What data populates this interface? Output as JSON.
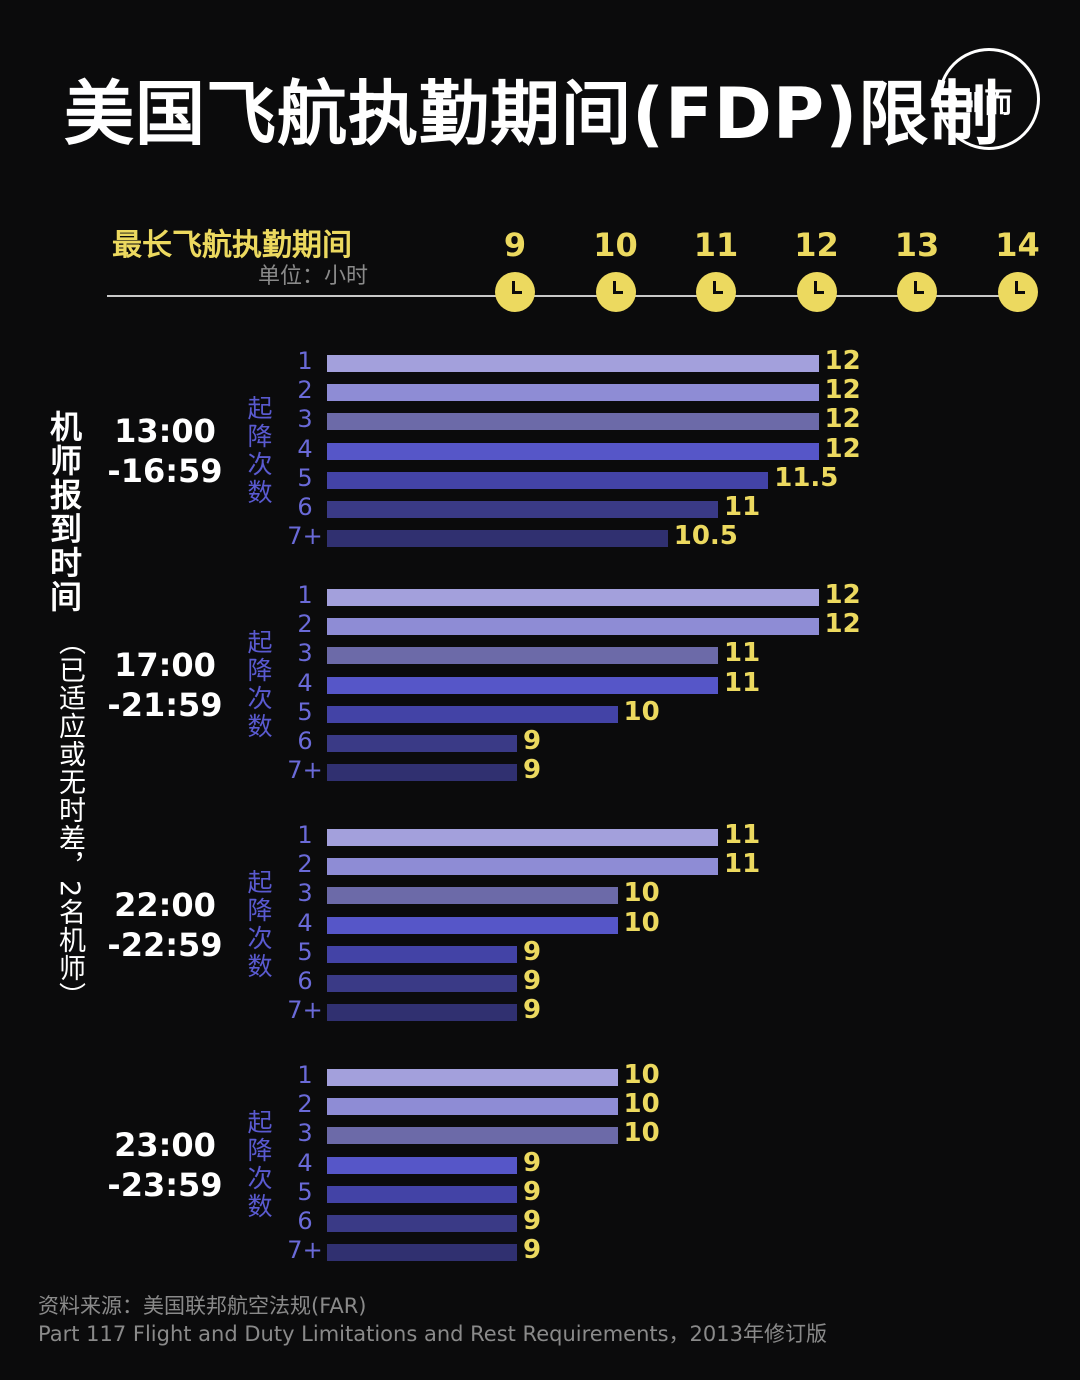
{
  "header": {
    "title": "美国飞航执勤期间(FDP)限制",
    "logo_text": "Ⅱ而"
  },
  "axis": {
    "title": "最长飞航执勤期间",
    "unit": "单位：小时",
    "ticks": [
      "9",
      "10",
      "11",
      "12",
      "13",
      "14"
    ]
  },
  "y_axis": {
    "label": "机师报到时间",
    "note": "（已适应或无时差，2名机师）"
  },
  "chart_data": {
    "type": "bar",
    "orientation": "horizontal",
    "title": "美国飞航执勤期间(FDP)限制",
    "xlabel": "最长飞航执勤期间",
    "xunit": "单位：小时",
    "xlim": [
      9,
      14
    ],
    "x_ticks": [
      9,
      10,
      11,
      12,
      13,
      14
    ],
    "ylabel": "机师报到时间",
    "category_label": "起降次数",
    "categories": [
      "1",
      "2",
      "3",
      "4",
      "5",
      "6",
      "7+"
    ],
    "groups": [
      {
        "label": "13:00\n-16:59",
        "values": [
          12,
          12,
          12,
          12,
          11.5,
          11,
          10.5
        ],
        "labels": [
          "12",
          "12",
          "12",
          "12",
          "11.5",
          "11",
          "10.5"
        ]
      },
      {
        "label": "17:00\n-21:59",
        "values": [
          12,
          12,
          11,
          11,
          10,
          9,
          9
        ],
        "labels": [
          "12",
          "12",
          "11",
          "11",
          "10",
          "9",
          "9"
        ]
      },
      {
        "label": "22:00\n-22:59",
        "values": [
          11,
          11,
          10,
          10,
          9,
          9,
          9
        ],
        "labels": [
          "11",
          "11",
          "10",
          "10",
          "9",
          "9",
          "9"
        ]
      },
      {
        "label": "23:00\n-23:59",
        "values": [
          10,
          10,
          10,
          9,
          9,
          9,
          9
        ],
        "labels": [
          "10",
          "10",
          "10",
          "9",
          "9",
          "9",
          "9"
        ]
      }
    ],
    "colors": [
      "#a3a0dc",
      "#8e8cd5",
      "#6c6aa8",
      "#5656c8",
      "#4343a6",
      "#3a3a86",
      "#303070"
    ],
    "value_label_color": "#ecd95f",
    "grid": false,
    "legend": "none"
  },
  "source": {
    "line1": "资料来源：美国联邦航空法规(FAR)",
    "line2": "Part 117  Flight and Duty Limitations and Rest Requirements，2013年修订版"
  }
}
